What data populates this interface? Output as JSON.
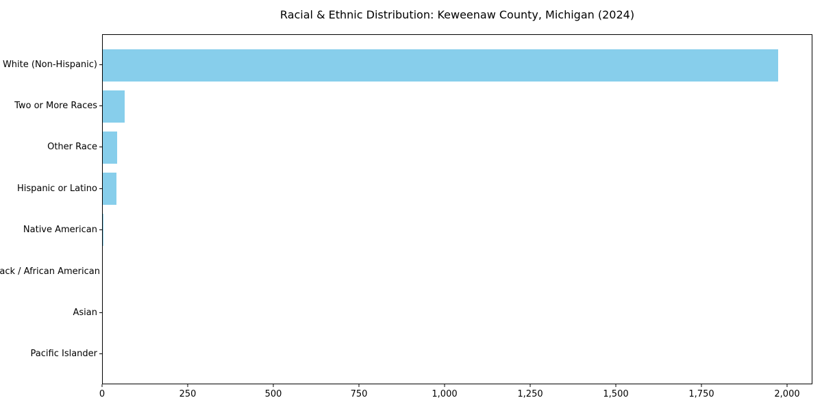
{
  "chart_data": {
    "type": "bar",
    "orientation": "horizontal",
    "title": "Racial & Ethnic Distribution: Keweenaw County, Michigan (2024)",
    "categories": [
      "White (Non-Hispanic)",
      "Two or More Races",
      "Other Race",
      "Hispanic or Latino",
      "Native American",
      "Black / African American",
      "Asian",
      "Pacific Islander"
    ],
    "values": [
      1975,
      65,
      43,
      41,
      2,
      0,
      0,
      0
    ],
    "xlabel": "",
    "ylabel": "",
    "xlim": [
      0,
      2074
    ],
    "x_ticks": [
      0,
      250,
      500,
      750,
      1000,
      1250,
      1500,
      1750,
      2000
    ],
    "x_tick_labels": [
      "0",
      "250",
      "500",
      "750",
      "1,000",
      "1,250",
      "1,500",
      "1,750",
      "2,000"
    ],
    "grid": false,
    "legend": null,
    "bar_color": "#87CEEB",
    "spine_color": "#000000",
    "text_color": "#000000",
    "background_color": "#ffffff"
  }
}
